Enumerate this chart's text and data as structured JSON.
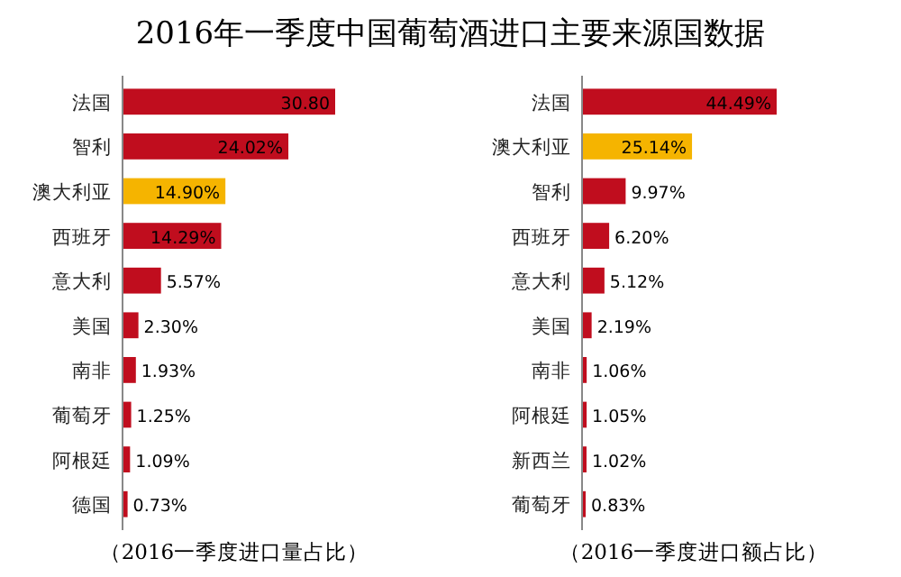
{
  "chart_data": [
    {
      "type": "bar",
      "orientation": "horizontal",
      "title": "2016年一季度中国葡萄酒进口主要来源国数据",
      "categories": [
        "法国",
        "智利",
        "澳大利亚",
        "西班牙",
        "意大利",
        "美国",
        "南非",
        "葡萄牙",
        "阿根廷",
        "德国"
      ],
      "values": [
        30.8,
        24.02,
        14.9,
        14.29,
        5.57,
        2.3,
        1.93,
        1.25,
        1.09,
        0.73
      ],
      "colors": [
        "#c00d1e",
        "#c00d1e",
        "#f5b400",
        "#c00d1e",
        "#c00d1e",
        "#c00d1e",
        "#c00d1e",
        "#c00d1e",
        "#c00d1e",
        "#c00d1e"
      ],
      "value_labels": [
        "30.80",
        "24.02%",
        "14.90%",
        "14.29%",
        "5.57%",
        "2.30%",
        "1.93%",
        "1.25%",
        "1.09%",
        "0.73%"
      ],
      "annotations": [
        "（2016一季度进口量占比）"
      ]
    },
    {
      "type": "bar",
      "orientation": "horizontal",
      "categories": [
        "法国",
        "澳大利亚",
        "智利",
        "西班牙",
        "意大利",
        "美国",
        "南非",
        "阿根廷",
        "新西兰",
        "葡萄牙"
      ],
      "values": [
        44.49,
        25.14,
        9.97,
        6.2,
        5.12,
        2.19,
        1.06,
        1.05,
        1.02,
        0.83
      ],
      "colors": [
        "#c00d1e",
        "#f5b400",
        "#c00d1e",
        "#c00d1e",
        "#c00d1e",
        "#c00d1e",
        "#c00d1e",
        "#c00d1e",
        "#c00d1e",
        "#c00d1e"
      ],
      "value_labels": [
        "44.49%",
        "25.14%",
        "9.97%",
        "6.20%",
        "5.12%",
        "2.19%",
        "1.06%",
        "1.05%",
        "1.02%",
        "0.83%"
      ],
      "annotations": [
        "（2016一季度进口额占比）"
      ]
    }
  ]
}
